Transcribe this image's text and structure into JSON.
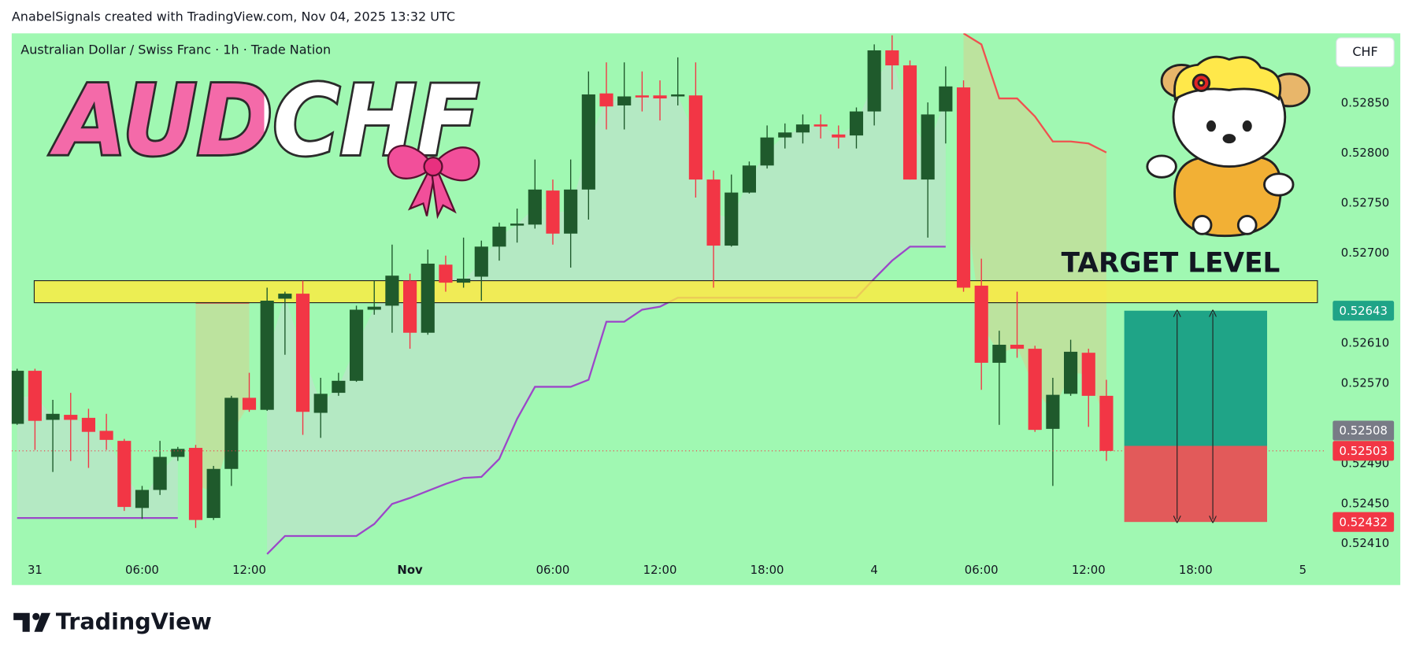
{
  "header": "AnabelSignals created with TradingView.com, Nov 04, 2025 13:32 UTC",
  "footer": "TradingView",
  "chart_data": {
    "type": "candlestick",
    "title": "AUDCHF",
    "symbol": "Australian Dollar / Swiss Franc · 1h · Trade Nation",
    "currency": "CHF",
    "annotation": "TARGET LEVEL",
    "up_color": "#1f5a2c",
    "down_color": "#f23645",
    "categories": [
      null,
      "31",
      null,
      null,
      null,
      null,
      null,
      "06:00",
      null,
      null,
      null,
      null,
      null,
      "12:00",
      null,
      null,
      null,
      null,
      null,
      null,
      null,
      null,
      "Nov",
      null,
      null,
      null,
      null,
      null,
      null,
      null,
      "06:00",
      null,
      null,
      null,
      null,
      null,
      "12:00",
      null,
      null,
      null,
      null,
      null,
      "18:00",
      null,
      null,
      null,
      null,
      null,
      "4",
      null,
      null,
      null,
      null,
      null,
      "06:00",
      null,
      null,
      null,
      null,
      null,
      "12:00",
      null,
      null,
      null,
      null,
      null,
      "18:00",
      null,
      null,
      null,
      null,
      null,
      "5",
      null
    ],
    "open": [
      0.5253,
      0.52583,
      0.52534,
      0.52539,
      0.52536,
      0.52523,
      0.52513,
      0.52446,
      0.52464,
      0.52497,
      0.52506,
      0.52436,
      0.52485,
      0.52556,
      0.52544,
      0.52655,
      0.5266,
      0.52541,
      0.52561,
      0.52573,
      0.52644,
      0.52648,
      0.52673,
      0.52621,
      0.52689,
      0.52671,
      0.52677,
      0.52707,
      0.52728,
      0.52729,
      0.52763,
      0.5272,
      0.52764,
      0.5286,
      0.52848,
      0.52858,
      0.52858,
      0.52857,
      0.52858,
      0.52774,
      0.52708,
      0.52761,
      0.52788,
      0.52816,
      0.52821,
      0.52829,
      0.52819,
      0.52818,
      0.52842,
      0.52903,
      0.52888,
      0.52774,
      0.52842,
      0.52866,
      0.52668,
      0.52591,
      0.52609,
      0.52605,
      0.52525,
      0.5256,
      0.52601,
      0.52558,
      null,
      null,
      null,
      null,
      null,
      null,
      null,
      null,
      null,
      null,
      null,
      null
    ],
    "high": [
      0.52585,
      0.52585,
      0.52554,
      0.52561,
      0.52545,
      0.5254,
      0.52515,
      0.52468,
      0.52513,
      0.52507,
      0.52509,
      0.52488,
      0.52558,
      0.52581,
      0.52666,
      0.52662,
      0.52673,
      0.52576,
      0.52581,
      0.52648,
      0.52673,
      0.52709,
      0.5268,
      0.52704,
      0.52698,
      0.52716,
      0.52713,
      0.52731,
      0.52745,
      0.52794,
      0.52774,
      0.52794,
      0.52882,
      0.52891,
      0.52891,
      0.52882,
      0.52873,
      0.52896,
      0.52891,
      0.52783,
      0.52779,
      0.52792,
      0.52828,
      0.5283,
      0.52839,
      0.52839,
      0.52828,
      0.52846,
      0.52909,
      0.52918,
      0.52893,
      0.52851,
      0.52887,
      0.52873,
      0.52695,
      0.52623,
      0.52662,
      0.52608,
      0.52576,
      0.52614,
      0.52605,
      0.52574,
      null,
      null,
      null,
      null,
      null,
      null,
      null,
      null,
      null,
      null,
      null,
      null
    ],
    "low": [
      0.52529,
      0.52504,
      0.52482,
      0.52493,
      0.52486,
      0.52504,
      0.52443,
      0.52435,
      0.52459,
      0.52493,
      0.52426,
      0.52434,
      0.52468,
      0.52542,
      0.52543,
      0.52599,
      0.52519,
      0.52516,
      0.52558,
      0.52572,
      0.52639,
      0.52621,
      0.52605,
      0.52619,
      0.52662,
      0.52666,
      0.52653,
      0.52693,
      0.52711,
      0.52725,
      0.52709,
      0.52686,
      0.52734,
      0.52824,
      0.52824,
      0.52842,
      0.52833,
      0.52848,
      0.52756,
      0.52666,
      0.52707,
      0.5276,
      0.52785,
      0.52805,
      0.5281,
      0.52815,
      0.52805,
      0.52805,
      0.52828,
      0.52864,
      0.52774,
      0.52716,
      0.5281,
      0.52662,
      0.52564,
      0.52529,
      0.52596,
      0.52522,
      0.52468,
      0.52558,
      0.52527,
      0.52493,
      null,
      null,
      null,
      null,
      null,
      null,
      null,
      null,
      null,
      null,
      null,
      null
    ],
    "close": [
      0.52583,
      0.52533,
      0.5254,
      0.52534,
      0.52522,
      0.52514,
      0.52447,
      0.52464,
      0.52497,
      0.52505,
      0.52434,
      0.52485,
      0.52556,
      0.52544,
      0.52653,
      0.5266,
      0.52542,
      0.5256,
      0.52573,
      0.52644,
      0.52647,
      0.52678,
      0.52621,
      0.5269,
      0.52671,
      0.52675,
      0.52707,
      0.52727,
      0.5273,
      0.52764,
      0.5272,
      0.52764,
      0.52859,
      0.52847,
      0.52857,
      0.52856,
      0.52855,
      0.52859,
      0.52774,
      0.52708,
      0.52761,
      0.52788,
      0.52816,
      0.52821,
      0.52829,
      0.52827,
      0.52816,
      0.52842,
      0.52903,
      0.52888,
      0.52774,
      0.52839,
      0.52867,
      0.52666,
      0.52591,
      0.52609,
      0.52605,
      0.52524,
      0.52559,
      0.52602,
      0.52558,
      0.52503,
      null,
      null,
      null,
      null,
      null,
      null,
      null,
      null,
      null,
      null,
      null,
      null
    ],
    "trend_lines": [
      {
        "color": "#9c47c9",
        "values": [
          0.52436,
          0.52436,
          0.52436,
          0.52436,
          0.52436,
          0.52436,
          0.52436,
          0.52436,
          0.52436,
          0.52436,
          null,
          null,
          null,
          null,
          0.524,
          0.52418,
          0.52418,
          0.52418,
          0.52418,
          0.52418,
          0.5243,
          0.5245,
          0.52456,
          0.52463,
          0.5247,
          0.52476,
          0.52477,
          0.52495,
          0.52535,
          0.52567,
          0.52567,
          0.52567,
          0.52574,
          0.52632,
          0.52632,
          0.52644,
          0.52647,
          0.52656,
          0.52656,
          0.52656,
          0.52656,
          0.52656,
          0.52656,
          0.52656,
          0.52656,
          0.52656,
          0.52656,
          0.52656,
          0.52675,
          0.52693,
          0.52707,
          0.52707,
          0.52707,
          null,
          null,
          null,
          null,
          null,
          null,
          null,
          null,
          null,
          null,
          null,
          null,
          null,
          null,
          null,
          null,
          null,
          null,
          null,
          null,
          null
        ]
      },
      {
        "color": "#f0504f",
        "values": [
          null,
          null,
          null,
          null,
          null,
          null,
          null,
          null,
          null,
          null,
          0.52651,
          0.52651,
          0.52651,
          0.52651,
          null,
          null,
          null,
          null,
          null,
          null,
          null,
          null,
          null,
          null,
          null,
          null,
          null,
          null,
          null,
          null,
          null,
          null,
          null,
          null,
          null,
          null,
          null,
          null,
          null,
          null,
          null,
          null,
          null,
          null,
          null,
          null,
          null,
          null,
          null,
          null,
          null,
          null,
          null,
          0.5292,
          0.52909,
          0.52855,
          0.52855,
          0.52837,
          0.52812,
          0.52812,
          0.5281,
          0.52801,
          null,
          null,
          null,
          null,
          null,
          null,
          null,
          null,
          null,
          null,
          null,
          null
        ]
      }
    ],
    "zone": {
      "low": 0.52651,
      "high": 0.52673,
      "color": "#ffeb3b"
    },
    "position": {
      "entry": 0.52508,
      "target": 0.52643,
      "stop": 0.52432,
      "start": 62,
      "end": 70,
      "target_color": "#1fa487",
      "stop_color": "#e25a5a"
    },
    "ylim": [
      0.52369,
      0.5292
    ],
    "yticks": [
      {
        "value": 0.5285,
        "label": "0.52850"
      },
      {
        "value": 0.528,
        "label": "0.52800"
      },
      {
        "value": 0.5275,
        "label": "0.52750"
      },
      {
        "value": 0.527,
        "label": "0.52700"
      },
      {
        "value": 0.5261,
        "label": "0.52610"
      },
      {
        "value": 0.5257,
        "label": "0.52570"
      },
      {
        "value": 0.5249,
        "label": "0.52490"
      },
      {
        "value": 0.5245,
        "label": "0.52450"
      },
      {
        "value": 0.5241,
        "label": "0.52410"
      }
    ]
  }
}
